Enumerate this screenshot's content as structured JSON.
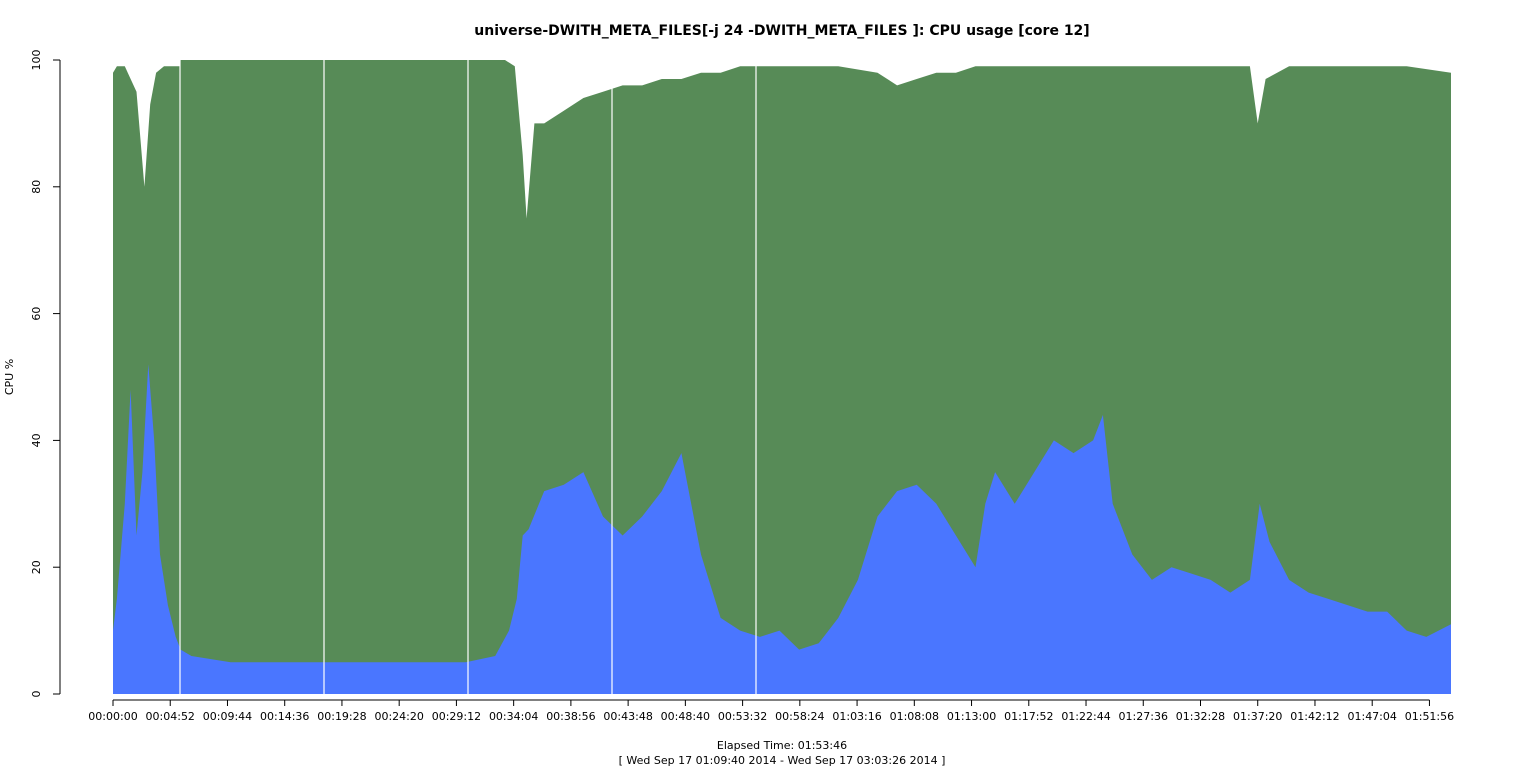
{
  "chart_data": {
    "type": "area",
    "title": "universe-DWITH_META_FILES[-j 24 -DWITH_META_FILES ]: CPU usage [core 12]",
    "ylabel": "CPU %",
    "xlabel": "Elapsed Time: 01:53:46",
    "subtitle": "[ Wed Sep 17 01:09:40 2014 - Wed Sep 17 03:03:26 2014 ]",
    "x_unit": "elapsed seconds",
    "ylim": [
      0,
      100
    ],
    "xlim": [
      0,
      6826
    ],
    "y_ticks": [
      0,
      20,
      40,
      60,
      80,
      100
    ],
    "x_ticks": [
      {
        "value": 0,
        "label": "00:00:00"
      },
      {
        "value": 292,
        "label": "00:04:52"
      },
      {
        "value": 584,
        "label": "00:09:44"
      },
      {
        "value": 876,
        "label": "00:14:36"
      },
      {
        "value": 1168,
        "label": "00:19:28"
      },
      {
        "value": 1460,
        "label": "00:24:20"
      },
      {
        "value": 1752,
        "label": "00:29:12"
      },
      {
        "value": 2044,
        "label": "00:34:04"
      },
      {
        "value": 2336,
        "label": "00:38:56"
      },
      {
        "value": 2628,
        "label": "00:43:48"
      },
      {
        "value": 2920,
        "label": "00:48:40"
      },
      {
        "value": 3212,
        "label": "00:53:32"
      },
      {
        "value": 3504,
        "label": "00:58:24"
      },
      {
        "value": 3796,
        "label": "01:03:16"
      },
      {
        "value": 4088,
        "label": "01:08:08"
      },
      {
        "value": 4380,
        "label": "01:13:00"
      },
      {
        "value": 4672,
        "label": "01:17:52"
      },
      {
        "value": 4964,
        "label": "01:22:44"
      },
      {
        "value": 5256,
        "label": "01:27:36"
      },
      {
        "value": 5548,
        "label": "01:32:28"
      },
      {
        "value": 5840,
        "label": "01:37:20"
      },
      {
        "value": 6132,
        "label": "01:42:12"
      },
      {
        "value": 6424,
        "label": "01:47:04"
      },
      {
        "value": 6716,
        "label": "01:51:56"
      }
    ],
    "grid": false,
    "colors": {
      "user": "#578b57",
      "system": "#4a76ff",
      "background": "#ffffff"
    },
    "series": [
      {
        "role": "total",
        "x": [
          0,
          20,
          60,
          120,
          160,
          190,
          220,
          260,
          300,
          340,
          345,
          400,
          600,
          800,
          1000,
          1200,
          1400,
          1600,
          1800,
          1900,
          2000,
          2050,
          2090,
          2110,
          2150,
          2200,
          2300,
          2400,
          2500,
          2600,
          2700,
          2800,
          2900,
          3000,
          3100,
          3200,
          3300,
          3500,
          3700,
          3900,
          4000,
          4100,
          4200,
          4300,
          4400,
          4500,
          4600,
          4800,
          5000,
          5200,
          5400,
          5600,
          5800,
          5840,
          5880,
          6000,
          6200,
          6400,
          6600,
          6826
        ],
        "values": [
          98,
          99,
          99,
          95,
          80,
          93,
          98,
          99,
          99,
          99,
          100,
          100,
          100,
          100,
          100,
          100,
          100,
          100,
          100,
          100,
          100,
          99,
          85,
          75,
          90,
          90,
          92,
          94,
          95,
          96,
          96,
          97,
          97,
          98,
          98,
          99,
          99,
          99,
          99,
          98,
          96,
          97,
          98,
          98,
          99,
          99,
          99,
          99,
          99,
          99,
          99,
          99,
          99,
          90,
          97,
          99,
          99,
          99,
          99,
          98
        ]
      },
      {
        "role": "system",
        "x": [
          0,
          20,
          60,
          90,
          120,
          150,
          180,
          210,
          240,
          280,
          320,
          345,
          400,
          600,
          800,
          1000,
          1200,
          1400,
          1600,
          1800,
          1950,
          2020,
          2060,
          2090,
          2120,
          2200,
          2300,
          2400,
          2500,
          2600,
          2700,
          2800,
          2900,
          3000,
          3100,
          3200,
          3300,
          3400,
          3500,
          3600,
          3700,
          3800,
          3900,
          4000,
          4100,
          4200,
          4300,
          4400,
          4450,
          4500,
          4600,
          4700,
          4800,
          4900,
          5000,
          5050,
          5100,
          5200,
          5300,
          5400,
          5500,
          5600,
          5700,
          5800,
          5850,
          5900,
          6000,
          6100,
          6200,
          6300,
          6400,
          6500,
          6600,
          6700,
          6826
        ],
        "values": [
          10,
          15,
          30,
          48,
          25,
          35,
          52,
          40,
          22,
          14,
          9,
          7,
          6,
          5,
          5,
          5,
          5,
          5,
          5,
          5,
          6,
          10,
          15,
          25,
          26,
          32,
          33,
          35,
          28,
          25,
          28,
          32,
          38,
          22,
          12,
          10,
          9,
          10,
          7,
          8,
          12,
          18,
          28,
          32,
          33,
          30,
          25,
          20,
          30,
          35,
          30,
          35,
          40,
          38,
          40,
          44,
          30,
          22,
          18,
          20,
          19,
          18,
          16,
          18,
          30,
          24,
          18,
          16,
          15,
          14,
          13,
          13,
          10,
          9,
          11
        ]
      }
    ]
  }
}
